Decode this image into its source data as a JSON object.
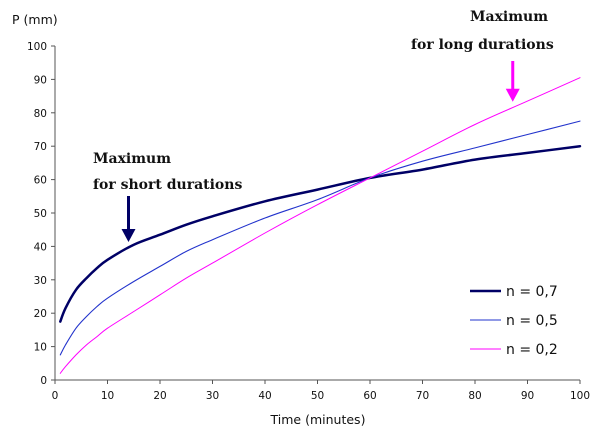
{
  "chart_data": {
    "type": "line",
    "title": "",
    "xlabel": "Time (minutes)",
    "ylabel": "P (mm)",
    "xlim": [
      0,
      100
    ],
    "ylim": [
      0,
      100
    ],
    "x_ticks": [
      0,
      10,
      20,
      30,
      40,
      50,
      60,
      70,
      80,
      90,
      100
    ],
    "y_ticks": [
      0,
      10,
      20,
      30,
      40,
      50,
      60,
      70,
      80,
      90,
      100
    ],
    "grid": false,
    "legend_position": "bottom-right",
    "series": [
      {
        "name": "n = 0,7",
        "color": "#000066",
        "x": [
          1,
          2,
          4,
          6,
          8,
          10,
          15,
          20,
          25,
          30,
          40,
          50,
          60,
          70,
          80,
          90,
          100
        ],
        "y": [
          17.5,
          21.5,
          27,
          30.5,
          33.5,
          36,
          40.5,
          43.5,
          46.5,
          49,
          53.5,
          57,
          60.5,
          63,
          66,
          68,
          70
        ]
      },
      {
        "name": "n = 0,5",
        "color": "#2233cc",
        "x": [
          1,
          2,
          4,
          6,
          8,
          10,
          15,
          20,
          25,
          30,
          40,
          50,
          60,
          70,
          80,
          90,
          100
        ],
        "y": [
          7.5,
          10.5,
          15.5,
          19,
          22,
          24.5,
          29.5,
          34,
          38.5,
          42,
          48.5,
          54,
          60.5,
          65.5,
          69.5,
          73.5,
          77.5
        ]
      },
      {
        "name": "n = 0,2",
        "color": "#ff00ff",
        "x": [
          1,
          2,
          4,
          6,
          8,
          10,
          15,
          20,
          25,
          30,
          40,
          50,
          60,
          70,
          80,
          90,
          100
        ],
        "y": [
          2,
          4,
          7.5,
          10.5,
          13,
          15.5,
          20.5,
          25.5,
          30.5,
          35,
          44,
          52.5,
          60.5,
          68.5,
          76.5,
          83.5,
          90.5
        ]
      }
    ],
    "annotations": [
      {
        "line1": "Maximum",
        "line2": "for short durations",
        "x": 14,
        "y": 41,
        "color": "#000066"
      },
      {
        "line1": "Maximum",
        "line2": "for long durations",
        "x": 87,
        "y": 83,
        "color": "#ff00ff"
      }
    ]
  }
}
